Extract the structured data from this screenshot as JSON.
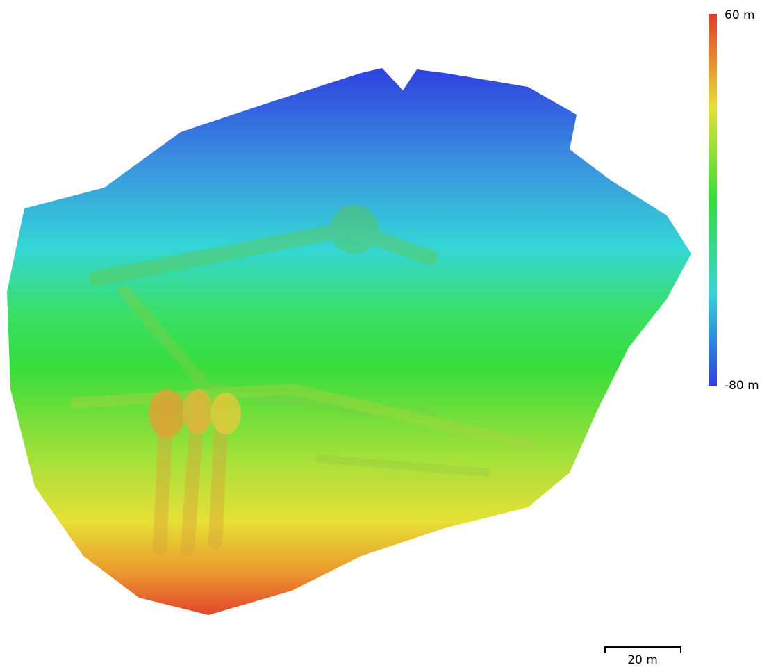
{
  "colorbar": {
    "max_label": "60 m",
    "min_label": "-80 m"
  },
  "scale_bar": {
    "label": "20 m"
  }
}
